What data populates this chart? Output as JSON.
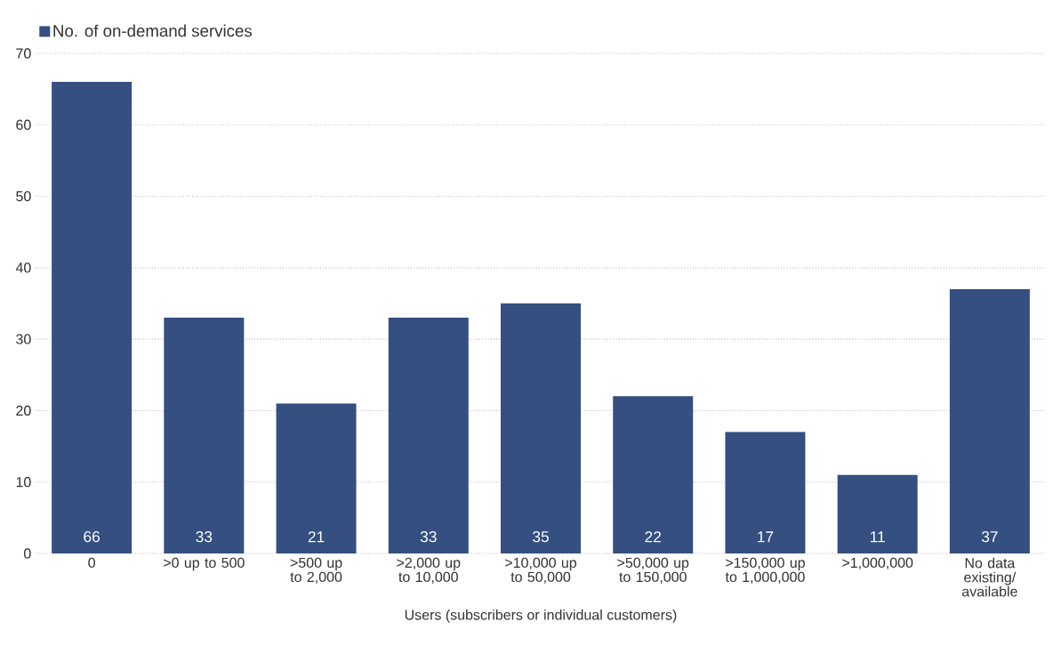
{
  "chart_data": {
    "type": "bar",
    "xlabel": "Users (subscribers or individual customers)",
    "categories": [
      "0",
      ">0 up to 500",
      ">500 up to 2,000",
      ">2,000 up to 10,000",
      ">10,000 up to 50,000",
      ">50,000 up to 150,000",
      ">150,000 up to 1,000,000",
      ">1,000,000",
      "No data existing/ available"
    ],
    "series": [
      {
        "name": "No. of on-demand services",
        "color": "#344f80",
        "values": [
          66,
          33,
          21,
          33,
          35,
          22,
          17,
          11,
          37
        ]
      }
    ],
    "ylim": [
      0,
      70
    ],
    "yticks": [
      0,
      10,
      20,
      30,
      40,
      50,
      60,
      70
    ],
    "grid": "y",
    "legend": "top left",
    "data_labels": true
  }
}
